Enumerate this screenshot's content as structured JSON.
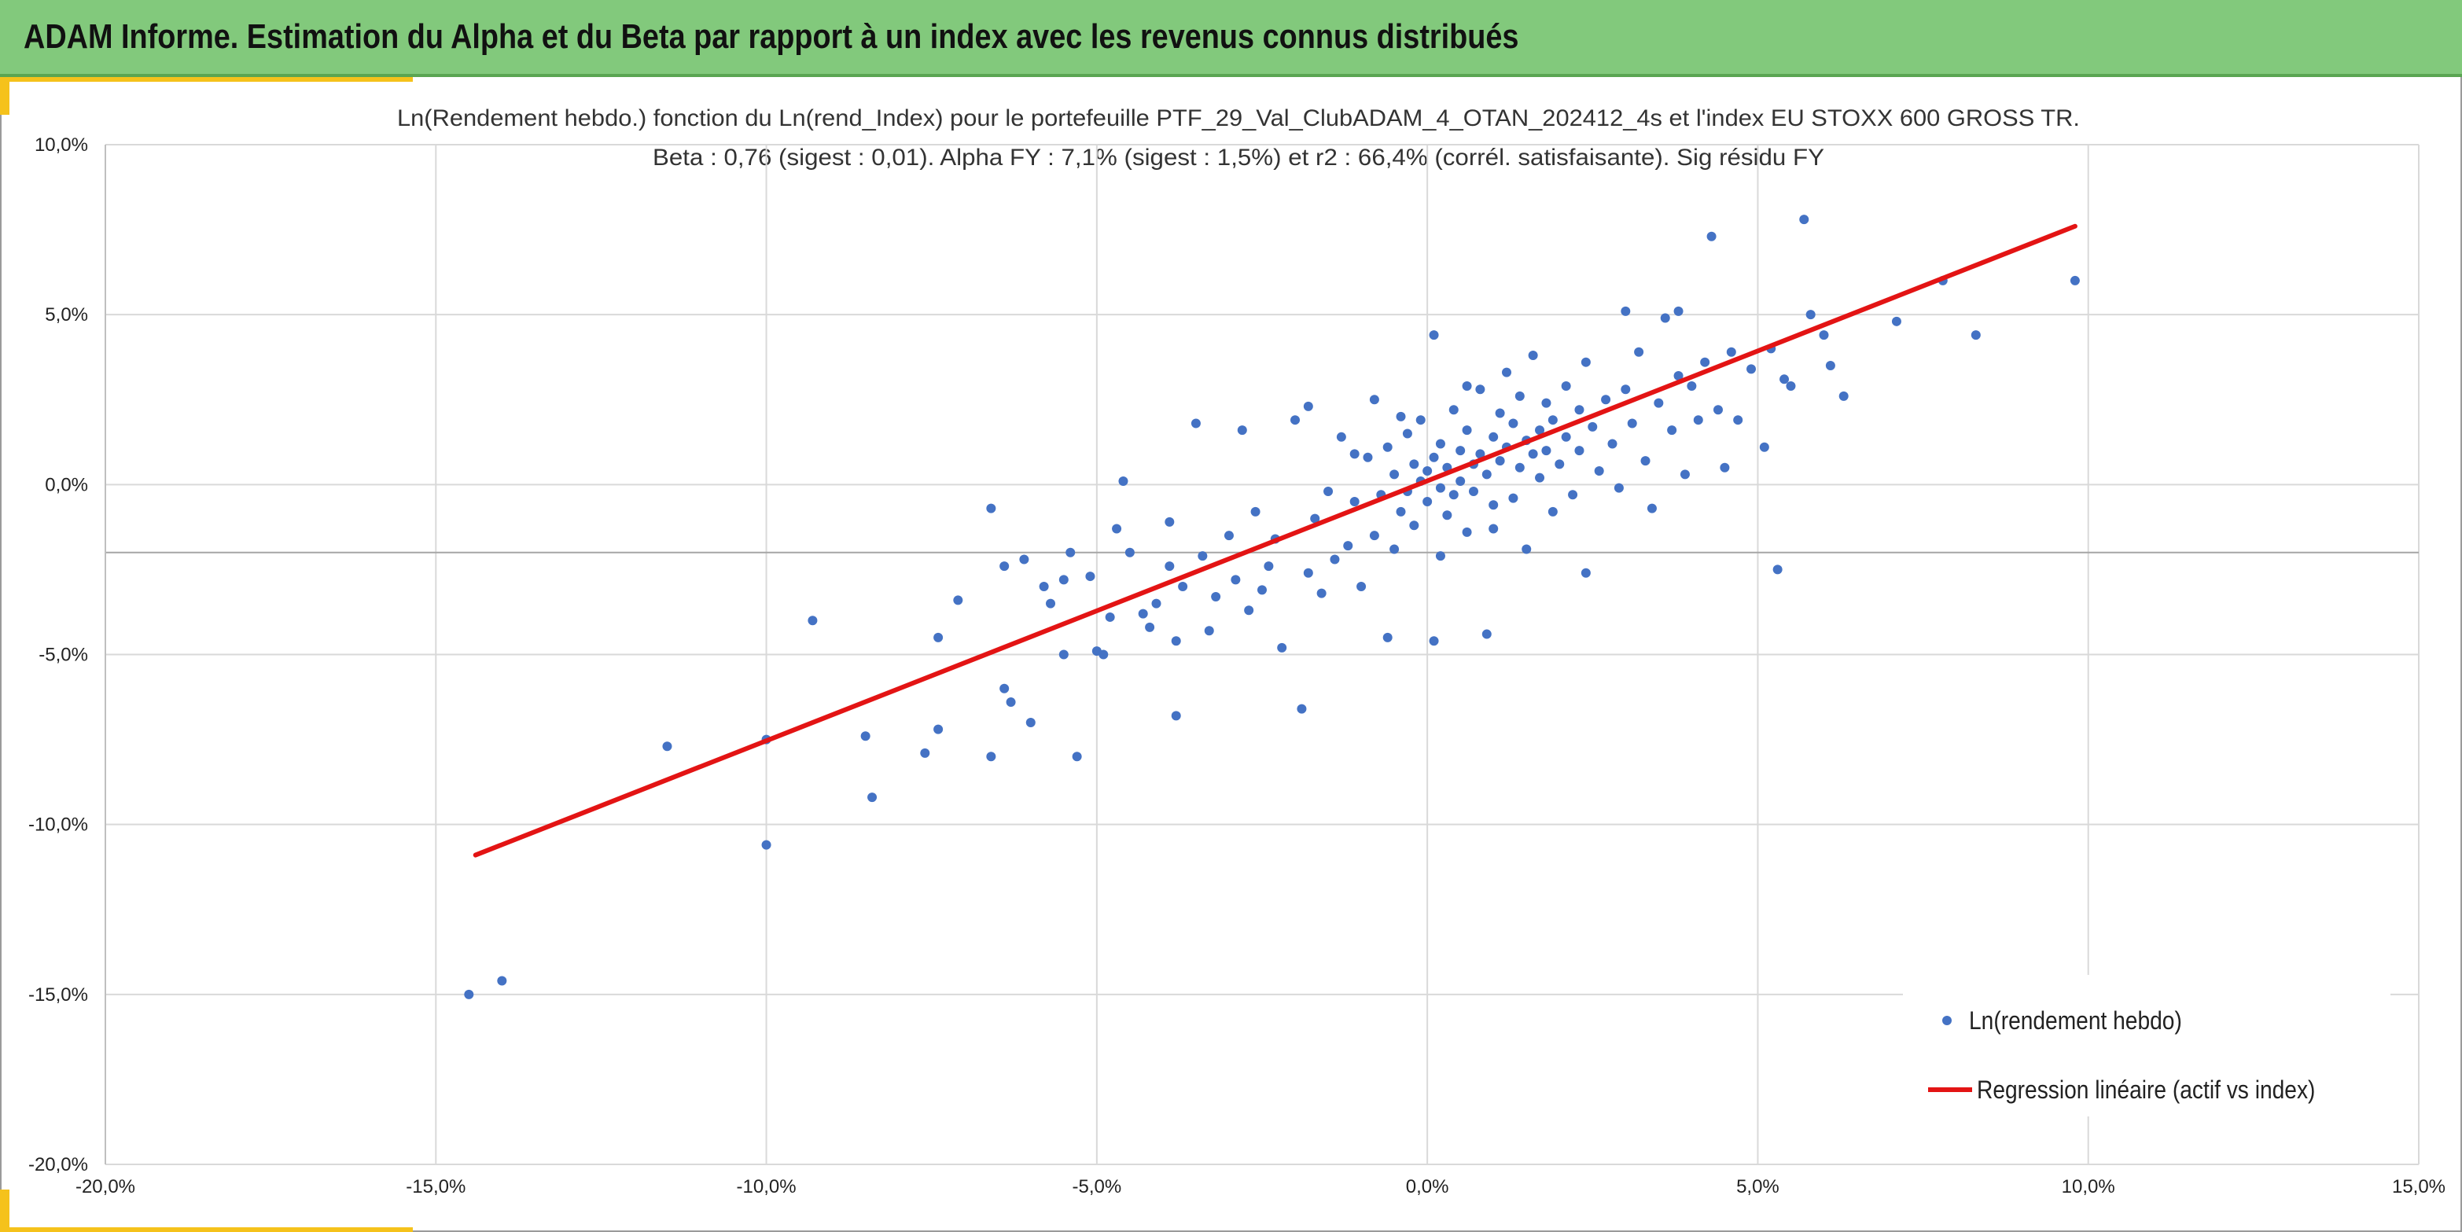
{
  "banner": {
    "title": "ADAM Informe. Estimation du Alpha et du Beta par rapport à un index avec les revenus connus distribués"
  },
  "colors": {
    "banner": "#82c97c",
    "accent": "#f5c21b",
    "points": "#4472c4",
    "regression": "#e31414",
    "grid": "#d9d9d9"
  },
  "chart_data": {
    "type": "scatter",
    "title": "Ln(Rendement hebdo.) fonction du Ln(rend_Index) pour le portefeuille PTF_29_Val_ClubADAM_4_OTAN_202412_4s et l'index EU STOXX 600 GROSS TR.",
    "subtitle": "Beta : 0,76 (sigest : 0,01). Alpha FY : 7,1% (sigest : 1,5%) et r2 : 66,4% (corrél. satisfaisante). Sig résidu FY",
    "xlim": [
      -20,
      15
    ],
    "ylim": [
      -20,
      10
    ],
    "x_ticks": [
      "-20,0%",
      "-15,0%",
      "-10,0%",
      "-5,0%",
      "0,0%",
      "5,0%",
      "10,0%",
      "15,0%"
    ],
    "y_ticks": [
      "10,0%",
      "5,0%",
      "0,0%",
      "-5,0%",
      "-10,0%",
      "-15,0%",
      "-20,0%"
    ],
    "grid": true,
    "legend_position": "bottom-right",
    "series": [
      {
        "name": "Ln(rendement hebdo)",
        "type": "scatter",
        "points": [
          [
            -14.5,
            -15.0
          ],
          [
            -14.0,
            -14.6
          ],
          [
            -11.5,
            -7.7
          ],
          [
            -10.0,
            -10.6
          ],
          [
            -10.0,
            -7.5
          ],
          [
            -9.3,
            -4.0
          ],
          [
            -8.5,
            -7.4
          ],
          [
            -8.4,
            -9.2
          ],
          [
            -7.6,
            -7.9
          ],
          [
            -7.4,
            -7.2
          ],
          [
            -7.4,
            -4.5
          ],
          [
            -7.1,
            -3.4
          ],
          [
            -6.6,
            -8.0
          ],
          [
            -6.6,
            -0.7
          ],
          [
            -6.4,
            -6.0
          ],
          [
            -6.3,
            -6.4
          ],
          [
            -6.0,
            -7.0
          ],
          [
            -6.4,
            -2.4
          ],
          [
            -6.1,
            -2.2
          ],
          [
            -5.8,
            -3.0
          ],
          [
            -5.7,
            -3.5
          ],
          [
            -5.5,
            -2.8
          ],
          [
            -5.5,
            -5.0
          ],
          [
            -5.3,
            -8.0
          ],
          [
            -5.4,
            -2.0
          ],
          [
            -5.1,
            -2.7
          ],
          [
            -5.0,
            -4.9
          ],
          [
            -4.9,
            -5.0
          ],
          [
            -4.8,
            -3.9
          ],
          [
            -4.7,
            -1.3
          ],
          [
            -4.6,
            0.1
          ],
          [
            -4.5,
            -2.0
          ],
          [
            -4.3,
            -3.8
          ],
          [
            -4.2,
            -4.2
          ],
          [
            -4.1,
            -3.5
          ],
          [
            -3.9,
            -2.4
          ],
          [
            -3.9,
            -1.1
          ],
          [
            -3.8,
            -6.8
          ],
          [
            -3.8,
            -4.6
          ],
          [
            -3.7,
            -3.0
          ],
          [
            -3.5,
            1.8
          ],
          [
            -3.4,
            -2.1
          ],
          [
            -3.3,
            -4.3
          ],
          [
            -3.2,
            -3.3
          ],
          [
            -3.0,
            -1.5
          ],
          [
            -2.9,
            -2.8
          ],
          [
            -2.8,
            1.6
          ],
          [
            -2.7,
            -3.7
          ],
          [
            -2.6,
            -0.8
          ],
          [
            -2.5,
            -3.1
          ],
          [
            -2.4,
            -2.4
          ],
          [
            -2.3,
            -1.6
          ],
          [
            -2.2,
            -4.8
          ],
          [
            -2.0,
            1.9
          ],
          [
            -1.9,
            -6.6
          ],
          [
            -1.8,
            -2.6
          ],
          [
            -1.8,
            2.3
          ],
          [
            -1.7,
            -1.0
          ],
          [
            -1.6,
            -3.2
          ],
          [
            -1.5,
            -0.2
          ],
          [
            -1.4,
            -2.2
          ],
          [
            -1.3,
            1.4
          ],
          [
            -1.2,
            -1.8
          ],
          [
            -1.1,
            -0.5
          ],
          [
            -1.0,
            -3.0
          ],
          [
            -0.9,
            0.8
          ],
          [
            -0.8,
            -1.5
          ],
          [
            -0.8,
            2.5
          ],
          [
            -0.7,
            -0.3
          ],
          [
            -0.6,
            -4.5
          ],
          [
            -0.6,
            1.1
          ],
          [
            -0.5,
            -1.9
          ],
          [
            -0.5,
            0.3
          ],
          [
            -0.4,
            -0.8
          ],
          [
            -0.3,
            1.5
          ],
          [
            -0.3,
            -0.2
          ],
          [
            -0.2,
            0.6
          ],
          [
            -0.2,
            -1.2
          ],
          [
            -0.1,
            0.1
          ],
          [
            -0.1,
            1.9
          ],
          [
            0.0,
            -0.5
          ],
          [
            0.0,
            0.4
          ],
          [
            0.1,
            -4.6
          ],
          [
            0.1,
            4.4
          ],
          [
            0.1,
            0.8
          ],
          [
            0.2,
            -0.1
          ],
          [
            0.2,
            1.2
          ],
          [
            0.3,
            -0.9
          ],
          [
            0.3,
            0.5
          ],
          [
            0.4,
            2.2
          ],
          [
            0.4,
            -0.3
          ],
          [
            0.5,
            1.0
          ],
          [
            0.5,
            0.1
          ],
          [
            0.6,
            -1.4
          ],
          [
            0.6,
            1.6
          ],
          [
            0.7,
            0.6
          ],
          [
            0.7,
            -0.2
          ],
          [
            0.8,
            2.8
          ],
          [
            0.8,
            0.9
          ],
          [
            0.9,
            -4.4
          ],
          [
            0.9,
            0.3
          ],
          [
            1.0,
            1.4
          ],
          [
            1.0,
            -0.6
          ],
          [
            1.1,
            2.1
          ],
          [
            1.1,
            0.7
          ],
          [
            1.2,
            3.3
          ],
          [
            1.2,
            1.1
          ],
          [
            1.3,
            -0.4
          ],
          [
            1.3,
            1.8
          ],
          [
            1.4,
            0.5
          ],
          [
            1.4,
            2.6
          ],
          [
            1.5,
            1.3
          ],
          [
            1.5,
            -1.9
          ],
          [
            1.6,
            0.9
          ],
          [
            1.6,
            3.8
          ],
          [
            1.7,
            1.6
          ],
          [
            1.7,
            0.2
          ],
          [
            1.8,
            2.4
          ],
          [
            1.8,
            1.0
          ],
          [
            1.9,
            -0.8
          ],
          [
            1.9,
            1.9
          ],
          [
            2.0,
            0.6
          ],
          [
            2.1,
            2.9
          ],
          [
            2.1,
            1.4
          ],
          [
            2.2,
            -0.3
          ],
          [
            2.3,
            2.2
          ],
          [
            2.3,
            1.0
          ],
          [
            2.4,
            -2.6
          ],
          [
            2.4,
            3.6
          ],
          [
            2.5,
            1.7
          ],
          [
            2.6,
            0.4
          ],
          [
            2.7,
            2.5
          ],
          [
            2.8,
            1.2
          ],
          [
            2.9,
            -0.1
          ],
          [
            3.0,
            5.1
          ],
          [
            3.0,
            2.8
          ],
          [
            3.1,
            1.8
          ],
          [
            3.2,
            3.9
          ],
          [
            3.3,
            0.7
          ],
          [
            3.4,
            -0.7
          ],
          [
            3.5,
            2.4
          ],
          [
            3.6,
            4.9
          ],
          [
            3.7,
            1.6
          ],
          [
            3.8,
            3.2
          ],
          [
            3.8,
            5.1
          ],
          [
            3.9,
            0.3
          ],
          [
            4.0,
            2.9
          ],
          [
            4.1,
            1.9
          ],
          [
            4.2,
            3.6
          ],
          [
            4.3,
            7.3
          ],
          [
            4.4,
            2.2
          ],
          [
            4.5,
            0.5
          ],
          [
            4.6,
            3.9
          ],
          [
            4.7,
            1.9
          ],
          [
            4.9,
            3.4
          ],
          [
            5.1,
            1.1
          ],
          [
            5.2,
            4.0
          ],
          [
            5.3,
            -2.5
          ],
          [
            5.4,
            3.1
          ],
          [
            5.5,
            2.9
          ],
          [
            5.7,
            7.8
          ],
          [
            5.8,
            5.0
          ],
          [
            6.0,
            4.4
          ],
          [
            6.1,
            3.5
          ],
          [
            6.3,
            2.6
          ],
          [
            7.1,
            4.8
          ],
          [
            7.8,
            6.0
          ],
          [
            8.3,
            4.4
          ],
          [
            9.8,
            6.0
          ],
          [
            0.2,
            -2.1
          ],
          [
            -0.4,
            2.0
          ],
          [
            0.6,
            2.9
          ],
          [
            1.0,
            -1.3
          ],
          [
            -1.1,
            0.9
          ]
        ]
      },
      {
        "name": "Regression linéaire (actif vs index)",
        "type": "line",
        "points": [
          [
            -14.4,
            -10.9
          ],
          [
            9.8,
            7.6
          ]
        ]
      }
    ]
  }
}
